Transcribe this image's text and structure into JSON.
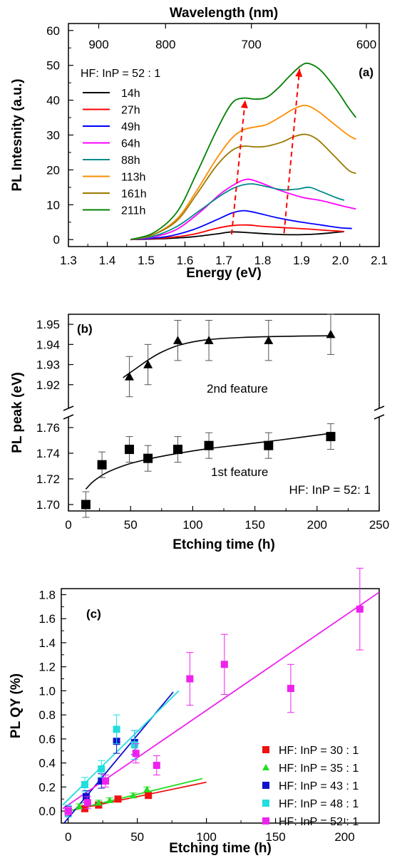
{
  "chart_data": [
    {
      "panel_label": "(a)",
      "type": "line",
      "xlabel": "Energy (eV)",
      "ylabel": "PL Intesnity (a.u.)",
      "x2label": "Wavelength (nm)",
      "xlim": [
        1.3,
        2.1
      ],
      "ylim": [
        -2,
        62
      ],
      "xticks": [
        "1.3",
        "1.4",
        "1.5",
        "1.6",
        "1.7",
        "1.8",
        "1.9",
        "2.0",
        "2.1"
      ],
      "yticks": [
        "0",
        "10",
        "20",
        "30",
        "40",
        "50",
        "60"
      ],
      "x2ticks": [
        {
          "label": "900",
          "energy": 1.378
        },
        {
          "label": "800",
          "energy": 1.55
        },
        {
          "label": "700",
          "energy": 1.771
        },
        {
          "label": "600",
          "energy": 2.067
        }
      ],
      "legend_title": "HF: InP = 52 : 1",
      "series": [
        {
          "name": "14h",
          "color": "#000000",
          "points": [
            [
              1.46,
              0
            ],
            [
              1.55,
              0.3
            ],
            [
              1.62,
              0.8
            ],
            [
              1.68,
              1.6
            ],
            [
              1.72,
              2.2
            ],
            [
              1.76,
              2.0
            ],
            [
              1.82,
              1.6
            ],
            [
              1.88,
              1.4
            ],
            [
              1.94,
              1.6
            ],
            [
              2.0,
              2.2
            ],
            [
              2.01,
              2.3
            ]
          ]
        },
        {
          "name": "27h",
          "color": "#ff0000",
          "points": [
            [
              1.46,
              0
            ],
            [
              1.55,
              0.5
            ],
            [
              1.62,
              1.5
            ],
            [
              1.68,
              3.2
            ],
            [
              1.72,
              4.0
            ],
            [
              1.76,
              4.2
            ],
            [
              1.8,
              3.8
            ],
            [
              1.86,
              3.4
            ],
            [
              1.92,
              3.0
            ],
            [
              1.97,
              2.6
            ],
            [
              2.0,
              2.4
            ],
            [
              2.01,
              2.3
            ]
          ]
        },
        {
          "name": "49h",
          "color": "#0000ff",
          "points": [
            [
              1.46,
              0
            ],
            [
              1.55,
              0.8
            ],
            [
              1.62,
              2.8
            ],
            [
              1.68,
              5.6
            ],
            [
              1.72,
              7.6
            ],
            [
              1.75,
              8.3
            ],
            [
              1.78,
              7.8
            ],
            [
              1.84,
              6.2
            ],
            [
              1.9,
              5.0
            ],
            [
              1.95,
              4.2
            ],
            [
              2.0,
              3.4
            ],
            [
              2.03,
              3.2
            ]
          ]
        },
        {
          "name": "64h",
          "color": "#ff00ff",
          "points": [
            [
              1.46,
              0
            ],
            [
              1.52,
              0.8
            ],
            [
              1.58,
              3.0
            ],
            [
              1.64,
              8.0
            ],
            [
              1.69,
              13.0
            ],
            [
              1.73,
              16.0
            ],
            [
              1.76,
              17.3
            ],
            [
              1.79,
              16.5
            ],
            [
              1.84,
              14.3
            ],
            [
              1.9,
              12.2
            ],
            [
              1.95,
              11.2
            ],
            [
              2.0,
              9.8
            ],
            [
              2.04,
              8.8
            ]
          ]
        },
        {
          "name": "88h",
          "color": "#008b8b",
          "points": [
            [
              1.46,
              0
            ],
            [
              1.52,
              1.0
            ],
            [
              1.58,
              3.8
            ],
            [
              1.64,
              8.5
            ],
            [
              1.69,
              12.5
            ],
            [
              1.73,
              15.0
            ],
            [
              1.77,
              16.0
            ],
            [
              1.81,
              15.2
            ],
            [
              1.85,
              14.3
            ],
            [
              1.89,
              14.5
            ],
            [
              1.92,
              15.0
            ],
            [
              1.95,
              13.8
            ],
            [
              1.99,
              12.0
            ],
            [
              2.01,
              11.3
            ]
          ]
        },
        {
          "name": "113h",
          "color": "#ff8c00",
          "points": [
            [
              1.46,
              0
            ],
            [
              1.52,
              1.5
            ],
            [
              1.58,
              6.0
            ],
            [
              1.63,
              14.0
            ],
            [
              1.68,
              23.0
            ],
            [
              1.72,
              29.0
            ],
            [
              1.75,
              31.5
            ],
            [
              1.78,
              32.3
            ],
            [
              1.81,
              33.0
            ],
            [
              1.85,
              35.5
            ],
            [
              1.88,
              37.5
            ],
            [
              1.91,
              38.5
            ],
            [
              1.94,
              37.0
            ],
            [
              1.98,
              33.5
            ],
            [
              2.02,
              30.0
            ],
            [
              2.04,
              28.8
            ]
          ]
        },
        {
          "name": "161h",
          "color": "#9b7a00",
          "points": [
            [
              1.46,
              0
            ],
            [
              1.52,
              1.5
            ],
            [
              1.58,
              5.5
            ],
            [
              1.63,
              13.0
            ],
            [
              1.68,
              21.0
            ],
            [
              1.72,
              25.5
            ],
            [
              1.75,
              26.8
            ],
            [
              1.78,
              26.6
            ],
            [
              1.81,
              26.8
            ],
            [
              1.85,
              28.0
            ],
            [
              1.88,
              29.5
            ],
            [
              1.91,
              30.2
            ],
            [
              1.94,
              28.8
            ],
            [
              1.98,
              24.5
            ],
            [
              2.02,
              20.0
            ],
            [
              2.04,
              19.0
            ]
          ]
        },
        {
          "name": "211h",
          "color": "#008000",
          "points": [
            [
              1.46,
              0
            ],
            [
              1.52,
              2.0
            ],
            [
              1.58,
              8.0
            ],
            [
              1.63,
              19.0
            ],
            [
              1.68,
              31.0
            ],
            [
              1.72,
              39.0
            ],
            [
              1.75,
              40.6
            ],
            [
              1.78,
              40.3
            ],
            [
              1.81,
              40.8
            ],
            [
              1.84,
              43.5
            ],
            [
              1.87,
              47.0
            ],
            [
              1.9,
              50.0
            ],
            [
              1.92,
              50.5
            ],
            [
              1.95,
              48.5
            ],
            [
              1.99,
              43.0
            ],
            [
              2.02,
              38.0
            ],
            [
              2.04,
              35.0
            ]
          ]
        }
      ],
      "arrows": [
        {
          "color": "#ff0000",
          "from": [
            1.72,
            1.5
          ],
          "to": [
            1.755,
            40.0
          ]
        },
        {
          "color": "#ff0000",
          "from": [
            1.855,
            1.8
          ],
          "to": [
            1.895,
            49.0
          ]
        }
      ]
    },
    {
      "panel_label": "(b)",
      "type": "scatter",
      "xlabel": "Etching time (h)",
      "ylabel": "PL  peak (eV)",
      "xlim": [
        0,
        250
      ],
      "xticks": [
        "0",
        "50",
        "100",
        "150",
        "200",
        "250"
      ],
      "ylim_upper": [
        1.91,
        1.955
      ],
      "ylim_lower": [
        1.695,
        1.765
      ],
      "yticks_upper": [
        "1.92",
        "1.93",
        "1.94",
        "1.95"
      ],
      "yticks_lower": [
        "1.70",
        "1.72",
        "1.74",
        "1.76"
      ],
      "annotation": "HF: InP = 52: 1",
      "series": [
        {
          "name": "2nd feature",
          "marker": "triangle",
          "x": [
            49,
            64,
            88,
            113,
            161,
            211
          ],
          "y": [
            1.924,
            1.93,
            1.942,
            1.942,
            1.942,
            1.945
          ],
          "err": [
            0.01,
            0.01,
            0.01,
            0.01,
            0.01,
            0.01
          ]
        },
        {
          "name": "1st feature",
          "marker": "square",
          "x": [
            14,
            27,
            49,
            64,
            88,
            113,
            161,
            211
          ],
          "y": [
            1.7,
            1.731,
            1.743,
            1.736,
            1.743,
            1.746,
            1.746,
            1.753
          ],
          "err": [
            0.01,
            0.01,
            0.01,
            0.01,
            0.01,
            0.01,
            0.01,
            0.01
          ]
        }
      ],
      "fits": [
        {
          "segment": "upper",
          "points": [
            [
              44,
              1.9235
            ],
            [
              55,
              1.9283
            ],
            [
              64,
              1.9322
            ],
            [
              75,
              1.9362
            ],
            [
              90,
              1.9398
            ],
            [
              110,
              1.9422
            ],
            [
              140,
              1.9435
            ],
            [
              180,
              1.9441
            ],
            [
              211,
              1.9443
            ]
          ]
        },
        {
          "segment": "lower",
          "points": [
            [
              14,
              1.712
            ],
            [
              20,
              1.718
            ],
            [
              30,
              1.7245
            ],
            [
              45,
              1.7305
            ],
            [
              60,
              1.7345
            ],
            [
              80,
              1.7385
            ],
            [
              110,
              1.7432
            ],
            [
              140,
              1.7468
            ],
            [
              170,
              1.7503
            ],
            [
              211,
              1.7555
            ]
          ]
        }
      ]
    },
    {
      "panel_label": "(c)",
      "type": "scatter",
      "xlabel": "Etching time (h)",
      "ylabel": "PL QY (%)",
      "xlim": [
        -5,
        225
      ],
      "ylim": [
        -0.1,
        1.85
      ],
      "xticks": [
        "0",
        "50",
        "100",
        "150",
        "200"
      ],
      "yticks": [
        "0.0",
        "0.2",
        "0.4",
        "0.6",
        "0.8",
        "1.0",
        "1.2",
        "1.4",
        "1.6",
        "1.8"
      ],
      "series": [
        {
          "name": "HF: InP = 30 : 1",
          "color": "#ee1111",
          "marker": "square",
          "x": [
            0,
            12,
            22,
            36,
            58
          ],
          "y": [
            0.0,
            0.02,
            0.05,
            0.1,
            0.13
          ],
          "err": [
            0.02,
            0.02,
            0.02,
            0.02,
            0.02
          ]
        },
        {
          "name": "HF: InP = 35 : 1",
          "color": "#22dd22",
          "marker": "triangle",
          "x": [
            0,
            8,
            22,
            30,
            47,
            57
          ],
          "y": [
            0.0,
            0.04,
            0.07,
            0.09,
            0.13,
            0.18
          ],
          "err": [
            0.02,
            0.02,
            0.02,
            0.02,
            0.02,
            0.02
          ]
        },
        {
          "name": "HF: InP = 43 : 1",
          "color": "#1111cc",
          "marker": "square",
          "x": [
            0,
            13,
            24,
            35,
            48
          ],
          "y": [
            0.0,
            0.12,
            0.25,
            0.58,
            0.57
          ],
          "err": [
            0.04,
            0.05,
            0.06,
            0.1,
            0.1
          ]
        },
        {
          "name": "HF: InP = 48 : 1",
          "color": "#22dddd",
          "marker": "square",
          "x": [
            0,
            12,
            24,
            35,
            48
          ],
          "y": [
            0.0,
            0.22,
            0.35,
            0.68,
            0.55
          ],
          "err": [
            0.05,
            0.06,
            0.07,
            0.12,
            0.12
          ]
        },
        {
          "name": "HF: InP = 52 : 1",
          "color": "#ee22ee",
          "marker": "square",
          "x": [
            0,
            14,
            27,
            49,
            64,
            88,
            113,
            161,
            211
          ],
          "y": [
            0.0,
            0.07,
            0.25,
            0.48,
            0.38,
            1.1,
            1.22,
            1.02,
            1.68
          ],
          "err": [
            0.03,
            0.05,
            0.05,
            0.08,
            0.08,
            0.22,
            0.25,
            0.2,
            0.34
          ]
        }
      ],
      "fits": [
        {
          "color": "#ee1111",
          "from": [
            0,
            0.0
          ],
          "to": [
            100,
            0.24
          ]
        },
        {
          "color": "#22dd22",
          "from": [
            0,
            0.0
          ],
          "to": [
            97,
            0.27
          ]
        },
        {
          "color": "#1111cc",
          "from": [
            -3,
            -0.1
          ],
          "to": [
            76,
            0.99
          ]
        },
        {
          "color": "#22dddd",
          "from": [
            -4,
            0.05
          ],
          "to": [
            80,
            1.0
          ]
        },
        {
          "color": "#ee22ee",
          "from": [
            -4,
            0.02
          ],
          "to": [
            225,
            1.82
          ]
        }
      ]
    }
  ],
  "labels": {
    "second_feature": "2nd feature",
    "first_feature": "1st feature"
  }
}
